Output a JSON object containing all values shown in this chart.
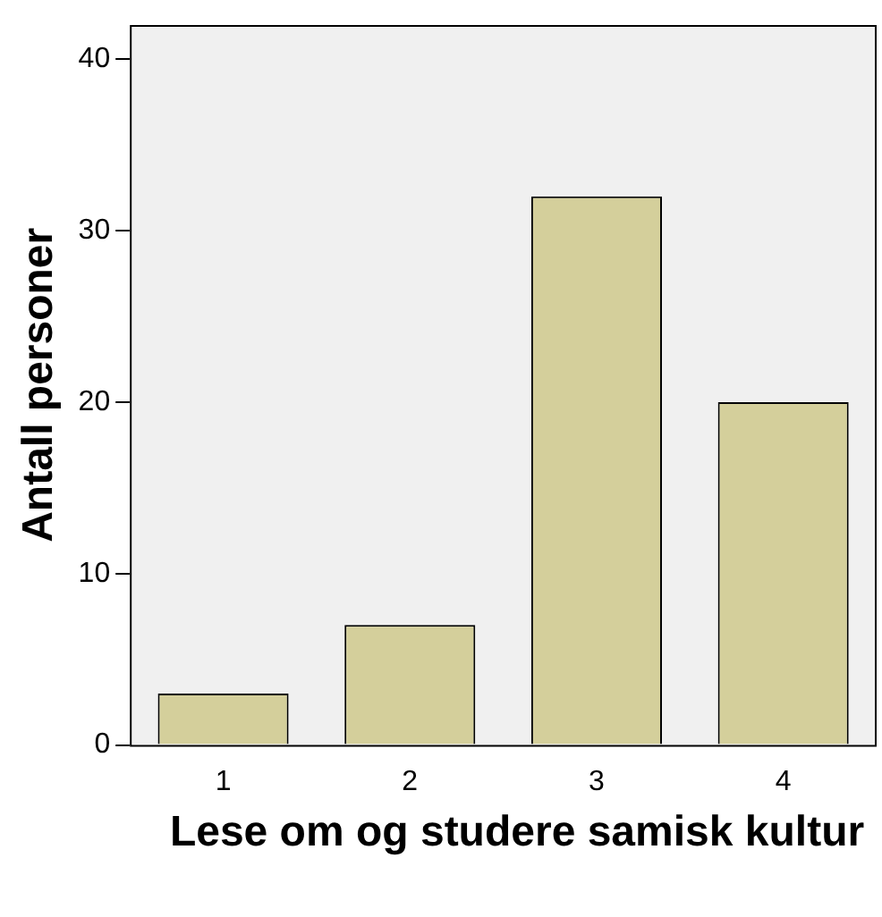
{
  "chart_data": {
    "type": "bar",
    "xlabel": "Lese om og studere samisk kultur",
    "ylabel": "Antall personer",
    "categories": [
      "1",
      "2",
      "3",
      "4"
    ],
    "values": [
      3,
      7,
      32,
      20
    ],
    "color": "#d4cf9b",
    "ylim": [
      0,
      42
    ],
    "yticks": [
      0,
      10,
      20,
      30,
      40
    ],
    "grid": false,
    "legend": false
  }
}
